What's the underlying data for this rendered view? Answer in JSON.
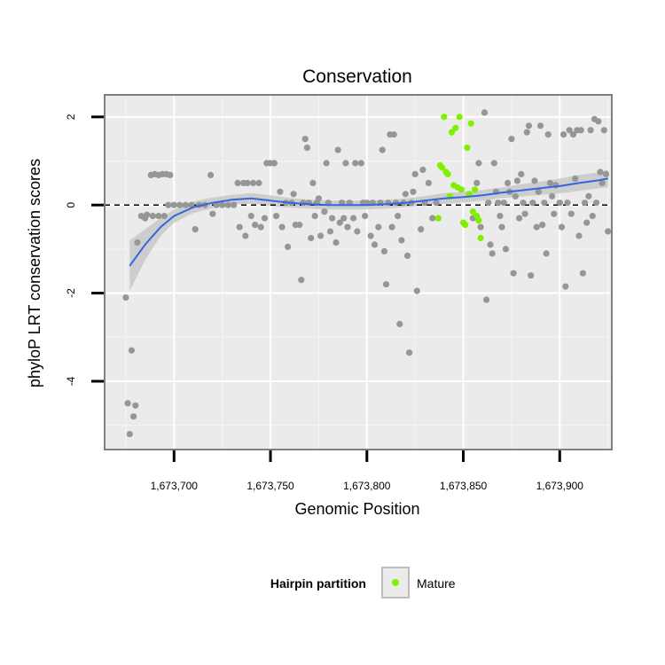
{
  "chart_data": {
    "type": "scatter",
    "title": "Conservation",
    "xlabel": "Genomic Position",
    "ylabel": "phyloP LRT conservation scores",
    "xlim": [
      1673664,
      1673927
    ],
    "ylim": [
      -5.55,
      2.5
    ],
    "x_ticks": [
      1673700,
      1673750,
      1673800,
      1673850,
      1673900
    ],
    "x_tick_labels": [
      "1,673,700",
      "1,673,750",
      "1,673,800",
      "1,673,850",
      "1,673,900"
    ],
    "y_ticks": [
      -4,
      -2,
      0,
      2
    ],
    "y_tick_labels": [
      "-4",
      "-2",
      "0",
      "2"
    ],
    "grid": true,
    "reference_line": {
      "y": 0,
      "style": "dashed"
    },
    "legend": {
      "title": "Hairpin partition",
      "position": "bottom",
      "entries": [
        {
          "label": "Mature",
          "color": "#80f000"
        }
      ]
    },
    "colors": {
      "other": "#969696",
      "mature": "#80f000",
      "smooth": "#3366e0",
      "band": "#c8c8c8",
      "panel": "#ebebeb"
    },
    "smooth": {
      "x": [
        1673677,
        1673685,
        1673693,
        1673700,
        1673710,
        1673720,
        1673730,
        1673740,
        1673750,
        1673760,
        1673770,
        1673780,
        1673790,
        1673800,
        1673810,
        1673820,
        1673830,
        1673840,
        1673850,
        1673860,
        1673870,
        1673880,
        1673890,
        1673900,
        1673910,
        1673920,
        1673925
      ],
      "y": [
        -1.38,
        -0.9,
        -0.5,
        -0.25,
        -0.05,
        0.05,
        0.12,
        0.15,
        0.1,
        0.05,
        0.02,
        0.0,
        0.0,
        0.0,
        0.02,
        0.05,
        0.1,
        0.15,
        0.18,
        0.22,
        0.28,
        0.33,
        0.38,
        0.43,
        0.5,
        0.56,
        0.6
      ],
      "upper": [
        -0.8,
        -0.55,
        -0.3,
        -0.1,
        0.08,
        0.17,
        0.23,
        0.27,
        0.22,
        0.16,
        0.12,
        0.1,
        0.1,
        0.1,
        0.12,
        0.15,
        0.2,
        0.27,
        0.3,
        0.34,
        0.4,
        0.47,
        0.53,
        0.6,
        0.68,
        0.74,
        0.8
      ],
      "lower": [
        -1.95,
        -1.25,
        -0.7,
        -0.4,
        -0.18,
        -0.07,
        0.01,
        0.03,
        -0.02,
        -0.06,
        -0.08,
        -0.1,
        -0.1,
        -0.1,
        -0.08,
        -0.05,
        0.0,
        0.03,
        0.06,
        0.1,
        0.16,
        0.19,
        0.23,
        0.26,
        0.32,
        0.38,
        0.4
      ]
    },
    "points_other": [
      [
        1673675,
        -2.1
      ],
      [
        1673676,
        -4.5
      ],
      [
        1673677,
        -5.2
      ],
      [
        1673678,
        -3.3
      ],
      [
        1673679,
        -4.8
      ],
      [
        1673680,
        -4.55
      ],
      [
        1673681,
        -0.85
      ],
      [
        1673683,
        -0.25
      ],
      [
        1673685,
        -0.3
      ],
      [
        1673686,
        -0.22
      ],
      [
        1673688,
        0.68
      ],
      [
        1673690,
        0.7
      ],
      [
        1673692,
        0.68
      ],
      [
        1673694,
        0.7
      ],
      [
        1673696,
        0.7
      ],
      [
        1673698,
        0.68
      ],
      [
        1673689,
        -0.25
      ],
      [
        1673692,
        -0.25
      ],
      [
        1673695,
        -0.25
      ],
      [
        1673697,
        0.0
      ],
      [
        1673700,
        0.0
      ],
      [
        1673703,
        0.0
      ],
      [
        1673706,
        0.0
      ],
      [
        1673709,
        0.0
      ],
      [
        1673711,
        -0.55
      ],
      [
        1673713,
        0.0
      ],
      [
        1673716,
        0.0
      ],
      [
        1673719,
        0.68
      ],
      [
        1673720,
        -0.2
      ],
      [
        1673722,
        0.0
      ],
      [
        1673725,
        0.0
      ],
      [
        1673728,
        0.0
      ],
      [
        1673731,
        0.0
      ],
      [
        1673733,
        0.5
      ],
      [
        1673734,
        -0.5
      ],
      [
        1673736,
        0.5
      ],
      [
        1673737,
        -0.7
      ],
      [
        1673738,
        0.5
      ],
      [
        1673740,
        -0.25
      ],
      [
        1673741,
        0.5
      ],
      [
        1673742,
        -0.45
      ],
      [
        1673744,
        0.5
      ],
      [
        1673745,
        -0.5
      ],
      [
        1673747,
        -0.3
      ],
      [
        1673748,
        0.95
      ],
      [
        1673750,
        0.95
      ],
      [
        1673752,
        0.95
      ],
      [
        1673753,
        -0.25
      ],
      [
        1673755,
        0.3
      ],
      [
        1673756,
        -0.5
      ],
      [
        1673758,
        0.05
      ],
      [
        1673759,
        -0.95
      ],
      [
        1673761,
        0.05
      ],
      [
        1673762,
        0.25
      ],
      [
        1673763,
        -0.45
      ],
      [
        1673765,
        -0.45
      ],
      [
        1673766,
        -1.7
      ],
      [
        1673767,
        0.05
      ],
      [
        1673768,
        1.5
      ],
      [
        1673769,
        1.3
      ],
      [
        1673770,
        0.05
      ],
      [
        1673771,
        -0.75
      ],
      [
        1673772,
        0.5
      ],
      [
        1673773,
        -0.25
      ],
      [
        1673774,
        0.05
      ],
      [
        1673775,
        0.15
      ],
      [
        1673776,
        -0.7
      ],
      [
        1673778,
        -0.15
      ],
      [
        1673779,
        0.95
      ],
      [
        1673780,
        0.05
      ],
      [
        1673781,
        -0.6
      ],
      [
        1673782,
        -0.3
      ],
      [
        1673784,
        -0.85
      ],
      [
        1673785,
        1.25
      ],
      [
        1673786,
        -0.4
      ],
      [
        1673787,
        0.05
      ],
      [
        1673788,
        -0.3
      ],
      [
        1673789,
        0.95
      ],
      [
        1673790,
        -0.5
      ],
      [
        1673791,
        0.05
      ],
      [
        1673793,
        -0.3
      ],
      [
        1673794,
        0.95
      ],
      [
        1673795,
        -0.6
      ],
      [
        1673797,
        0.95
      ],
      [
        1673798,
        0.05
      ],
      [
        1673799,
        -0.25
      ],
      [
        1673800,
        0.05
      ],
      [
        1673802,
        -0.7
      ],
      [
        1673803,
        0.05
      ],
      [
        1673804,
        -0.9
      ],
      [
        1673806,
        -0.5
      ],
      [
        1673807,
        0.05
      ],
      [
        1673808,
        1.25
      ],
      [
        1673809,
        -1.05
      ],
      [
        1673810,
        -1.8
      ],
      [
        1673811,
        0.05
      ],
      [
        1673812,
        1.6
      ],
      [
        1673813,
        -0.5
      ],
      [
        1673814,
        1.6
      ],
      [
        1673815,
        0.05
      ],
      [
        1673816,
        -0.25
      ],
      [
        1673817,
        -2.7
      ],
      [
        1673818,
        -0.8
      ],
      [
        1673819,
        0.05
      ],
      [
        1673820,
        0.25
      ],
      [
        1673821,
        -1.15
      ],
      [
        1673822,
        -3.35
      ],
      [
        1673823,
        0.05
      ],
      [
        1673824,
        0.3
      ],
      [
        1673825,
        0.7
      ],
      [
        1673826,
        -1.95
      ],
      [
        1673828,
        -0.55
      ],
      [
        1673829,
        0.8
      ],
      [
        1673830,
        0.05
      ],
      [
        1673832,
        0.5
      ],
      [
        1673834,
        -0.3
      ],
      [
        1673836,
        0.05
      ],
      [
        1673855,
        -0.3
      ],
      [
        1673857,
        0.5
      ],
      [
        1673858,
        0.95
      ],
      [
        1673859,
        -0.5
      ],
      [
        1673861,
        2.1
      ],
      [
        1673862,
        -2.15
      ],
      [
        1673863,
        0.05
      ],
      [
        1673864,
        -0.9
      ],
      [
        1673865,
        -1.1
      ],
      [
        1673866,
        0.95
      ],
      [
        1673867,
        0.3
      ],
      [
        1673868,
        0.05
      ],
      [
        1673869,
        -0.25
      ],
      [
        1673870,
        -0.5
      ],
      [
        1673871,
        0.05
      ],
      [
        1673872,
        -1.0
      ],
      [
        1673873,
        0.5
      ],
      [
        1673874,
        0.3
      ],
      [
        1673875,
        1.5
      ],
      [
        1673876,
        -1.55
      ],
      [
        1673877,
        0.2
      ],
      [
        1673878,
        0.55
      ],
      [
        1673879,
        -0.3
      ],
      [
        1673880,
        0.7
      ],
      [
        1673881,
        0.05
      ],
      [
        1673882,
        -0.2
      ],
      [
        1673883,
        1.65
      ],
      [
        1673884,
        1.8
      ],
      [
        1673885,
        -1.6
      ],
      [
        1673886,
        0.05
      ],
      [
        1673887,
        0.55
      ],
      [
        1673888,
        -0.5
      ],
      [
        1673889,
        0.3
      ],
      [
        1673890,
        1.8
      ],
      [
        1673891,
        -0.45
      ],
      [
        1673892,
        0.05
      ],
      [
        1673893,
        -1.1
      ],
      [
        1673894,
        1.6
      ],
      [
        1673895,
        0.5
      ],
      [
        1673896,
        0.2
      ],
      [
        1673897,
        -0.2
      ],
      [
        1673898,
        0.45
      ],
      [
        1673900,
        0.05
      ],
      [
        1673901,
        -0.5
      ],
      [
        1673902,
        1.6
      ],
      [
        1673903,
        -1.85
      ],
      [
        1673904,
        0.05
      ],
      [
        1673905,
        1.7
      ],
      [
        1673906,
        -0.2
      ],
      [
        1673907,
        1.6
      ],
      [
        1673908,
        0.6
      ],
      [
        1673909,
        1.7
      ],
      [
        1673910,
        -0.7
      ],
      [
        1673911,
        1.7
      ],
      [
        1673912,
        -1.55
      ],
      [
        1673913,
        0.05
      ],
      [
        1673914,
        -0.4
      ],
      [
        1673915,
        0.2
      ],
      [
        1673916,
        1.7
      ],
      [
        1673917,
        -0.25
      ],
      [
        1673918,
        1.95
      ],
      [
        1673919,
        0.05
      ],
      [
        1673920,
        1.9
      ],
      [
        1673921,
        0.75
      ],
      [
        1673922,
        0.5
      ],
      [
        1673923,
        1.7
      ],
      [
        1673924,
        0.7
      ],
      [
        1673925,
        -0.6
      ]
    ],
    "points_mature": [
      [
        1673838,
        0.9
      ],
      [
        1673839,
        0.85
      ],
      [
        1673840,
        2.0
      ],
      [
        1673841,
        0.75
      ],
      [
        1673837,
        -0.3
      ],
      [
        1673842,
        0.7
      ],
      [
        1673843,
        0.2
      ],
      [
        1673844,
        1.65
      ],
      [
        1673845,
        0.45
      ],
      [
        1673846,
        1.75
      ],
      [
        1673847,
        0.4
      ],
      [
        1673848,
        2.0
      ],
      [
        1673849,
        0.35
      ],
      [
        1673850,
        -0.4
      ],
      [
        1673851,
        -0.45
      ],
      [
        1673852,
        1.3
      ],
      [
        1673853,
        0.25
      ],
      [
        1673854,
        1.85
      ],
      [
        1673855,
        -0.15
      ],
      [
        1673856,
        0.35
      ],
      [
        1673857,
        -0.25
      ],
      [
        1673858,
        -0.35
      ],
      [
        1673859,
        -0.75
      ]
    ]
  }
}
